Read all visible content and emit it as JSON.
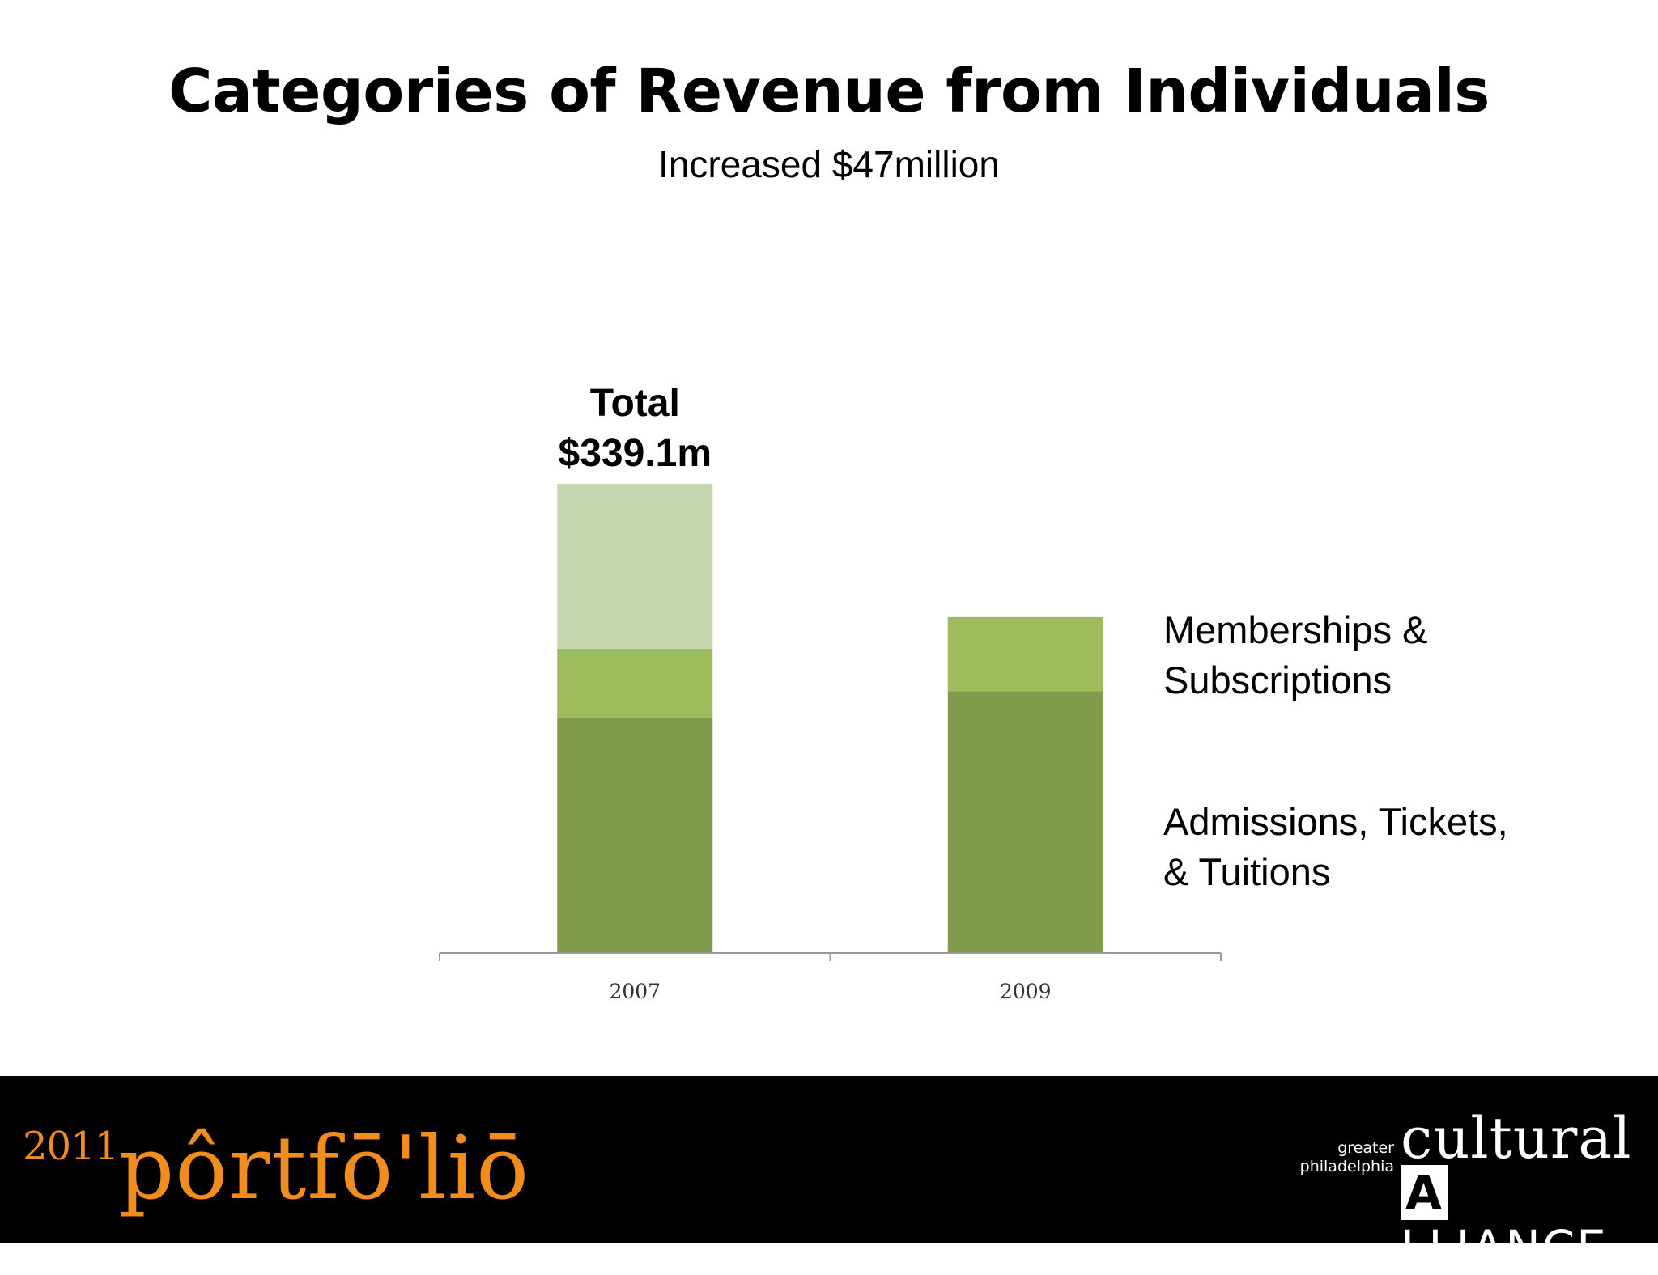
{
  "slide": {
    "title": "Categories of Revenue from Individuals",
    "subtitle": "Increased $47million"
  },
  "chart_data": {
    "type": "bar",
    "stacked": true,
    "categories": [
      "2007",
      "2009"
    ],
    "series": [
      {
        "name": "Admissions, Tickets, & Tuitions",
        "values": [
          169.9,
          189.3
        ],
        "color": "#7f9c4b"
      },
      {
        "name": "Memberships & Subscriptions",
        "values": [
          50.0,
          53.4
        ],
        "color": "#9dbc5b"
      },
      {
        "name": "",
        "values": [
          119.2,
          0
        ],
        "color": "#c6d7b0"
      }
    ],
    "annotation": {
      "category": "2007",
      "lines": [
        "Total",
        "$339.1m"
      ]
    },
    "legend_labels": [
      {
        "lines": [
          "Memberships &",
          "Subscriptions"
        ]
      },
      {
        "lines": [
          "Admissions, Tickets,",
          "& Tuitions"
        ]
      }
    ],
    "ylim": [
      0,
      339.1
    ],
    "grid": false,
    "y_axis_visible": false
  },
  "footer": {
    "logo_left": {
      "year": "2011",
      "word": "pôrtfō'liō"
    },
    "logo_right": {
      "line1": "greater",
      "line2": "philadelphia",
      "word1": "cultural",
      "word2_first": "A",
      "word2_rest": "LLIANCE"
    },
    "background": "#000000",
    "accent": "#f28c1c"
  }
}
